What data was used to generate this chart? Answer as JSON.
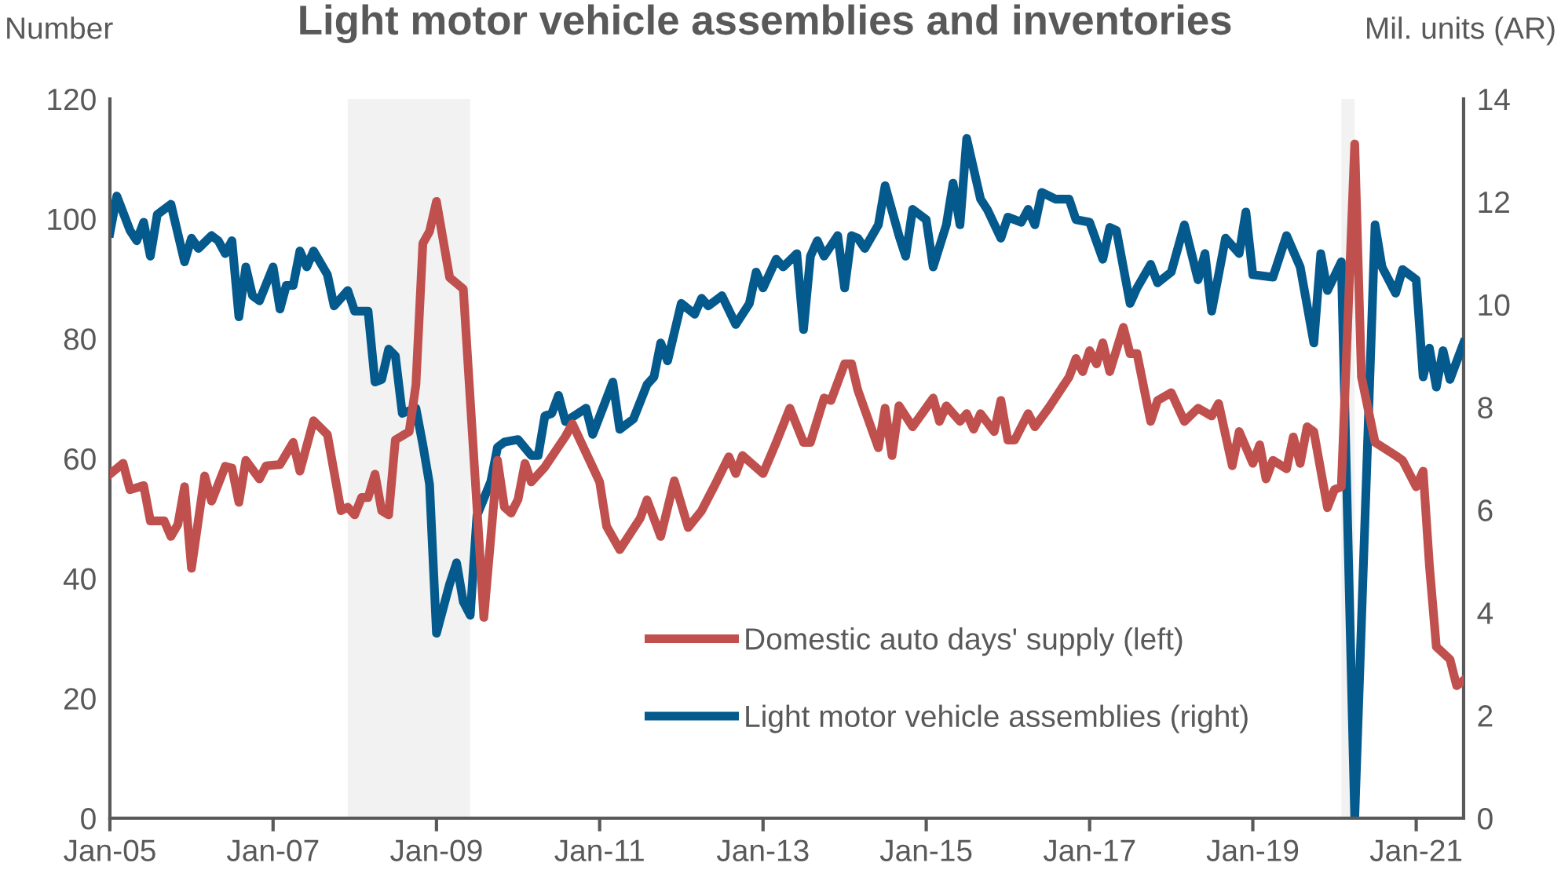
{
  "chart_data": {
    "type": "line",
    "title": "Light motor vehicle assemblies and inventories",
    "ylabel": "Number",
    "y2label": "Mil. units (AR)",
    "xlim": [
      "2005-01",
      "2021-08"
    ],
    "xticks": [
      {
        "value": "2005-01",
        "label": "Jan-05"
      },
      {
        "value": "2007-01",
        "label": "Jan-07"
      },
      {
        "value": "2009-01",
        "label": "Jan-09"
      },
      {
        "value": "2011-01",
        "label": "Jan-11"
      },
      {
        "value": "2013-01",
        "label": "Jan-13"
      },
      {
        "value": "2015-01",
        "label": "Jan-15"
      },
      {
        "value": "2017-01",
        "label": "Jan-17"
      },
      {
        "value": "2019-01",
        "label": "Jan-19"
      },
      {
        "value": "2021-01",
        "label": "Jan-21"
      }
    ],
    "ylim": [
      0,
      120
    ],
    "yticks": [
      0,
      20,
      40,
      60,
      80,
      100,
      120
    ],
    "y2lim": [
      0,
      14
    ],
    "y2ticks": [
      0,
      2,
      4,
      6,
      8,
      10,
      12,
      14
    ],
    "grid": false,
    "legend": "bottom",
    "line_style": "solid",
    "marker": "none",
    "bands": [
      {
        "axis": "x",
        "from": "2007-12",
        "to": "2009-06",
        "color": "#f2f2f2"
      },
      {
        "axis": "x",
        "from": "2020-02",
        "to": "2020-04",
        "color": "#f2f2f2"
      }
    ],
    "series": [
      {
        "name": "Domestic auto days' supply (left)",
        "color": "#c0504d",
        "axis": "y",
        "x": [
          "2005-01",
          "2005-03",
          "2005-04",
          "2005-06",
          "2005-07",
          "2005-09",
          "2005-10",
          "2005-11",
          "2005-12",
          "2006-01",
          "2006-03",
          "2006-04",
          "2006-06",
          "2006-07",
          "2006-08",
          "2006-09",
          "2006-11",
          "2006-12",
          "2007-02",
          "2007-04",
          "2007-05",
          "2007-07",
          "2007-09",
          "2007-11",
          "2007-12",
          "2008-01",
          "2008-02",
          "2008-03",
          "2008-04",
          "2008-05",
          "2008-06",
          "2008-07",
          "2008-09",
          "2008-10",
          "2008-11",
          "2008-12",
          "2009-01",
          "2009-03",
          "2009-05",
          "2009-08",
          "2009-10",
          "2009-11",
          "2009-12",
          "2010-01",
          "2010-02",
          "2010-03",
          "2010-05",
          "2010-08",
          "2010-09",
          "2011-01",
          "2011-02",
          "2011-04",
          "2011-07",
          "2011-08",
          "2011-10",
          "2011-12",
          "2012-02",
          "2012-04",
          "2012-06",
          "2012-08",
          "2012-09",
          "2012-10",
          "2013-01",
          "2013-03",
          "2013-05",
          "2013-07",
          "2013-08",
          "2013-10",
          "2013-11",
          "2014-01",
          "2014-02",
          "2014-03",
          "2014-06",
          "2014-07",
          "2014-08",
          "2014-09",
          "2014-11",
          "2015-02",
          "2015-03",
          "2015-04",
          "2015-06",
          "2015-07",
          "2015-08",
          "2015-09",
          "2015-11",
          "2015-12",
          "2016-01",
          "2016-02",
          "2016-04",
          "2016-05",
          "2016-07",
          "2016-09",
          "2016-10",
          "2016-11",
          "2016-12",
          "2017-01",
          "2017-02",
          "2017-03",
          "2017-04",
          "2017-06",
          "2017-07",
          "2017-08",
          "2017-10",
          "2017-11",
          "2018-01",
          "2018-03",
          "2018-05",
          "2018-07",
          "2018-08",
          "2018-10",
          "2018-11",
          "2019-01",
          "2019-02",
          "2019-03",
          "2019-04",
          "2019-06",
          "2019-07",
          "2019-08",
          "2019-09",
          "2019-10",
          "2019-12",
          "2020-01",
          "2020-02",
          "2020-04",
          "2020-05",
          "2020-07",
          "2020-10",
          "2020-11",
          "2021-01",
          "2021-02",
          "2021-03",
          "2021-04",
          "2021-06",
          "2021-07",
          "2021-08"
        ],
        "values": [
          57.4,
          59.2,
          54.8,
          55.5,
          49.6,
          49.6,
          47.0,
          49.0,
          55.3,
          41.7,
          57.1,
          52.9,
          58.7,
          58.4,
          52.7,
          59.7,
          56.6,
          58.8,
          59.0,
          62.7,
          57.9,
          66.3,
          64.0,
          51.3,
          51.9,
          50.6,
          53.5,
          53.5,
          57.4,
          51.3,
          50.6,
          63.1,
          64.5,
          72.3,
          95.9,
          97.9,
          102.9,
          90.2,
          88.3,
          33.5,
          59.7,
          51.9,
          50.9,
          53.2,
          59.2,
          56.1,
          58.6,
          63.7,
          65.8,
          56.1,
          48.7,
          44.8,
          50.0,
          53.1,
          47.0,
          56.3,
          48.5,
          51.3,
          55.7,
          60.3,
          57.5,
          60.5,
          57.5,
          62.7,
          68.4,
          62.7,
          62.7,
          70.1,
          69.7,
          75.8,
          75.8,
          71.4,
          61.8,
          68.4,
          60.5,
          68.8,
          65.3,
          70.1,
          66.2,
          68.8,
          66.2,
          67.5,
          64.9,
          67.5,
          64.5,
          69.7,
          63.1,
          63.1,
          67.5,
          65.3,
          68.4,
          71.9,
          73.6,
          76.7,
          74.5,
          78.0,
          75.8,
          79.3,
          74.5,
          81.9,
          77.5,
          77.5,
          66.2,
          69.7,
          71.0,
          66.2,
          68.4,
          67.1,
          69.2,
          58.8,
          64.5,
          59.2,
          62.3,
          56.6,
          59.7,
          58.3,
          63.6,
          59.2,
          65.3,
          64.5,
          51.8,
          54.8,
          55.3,
          112.5,
          73.6,
          62.7,
          60.5,
          59.7,
          55.3,
          57.9,
          42.2,
          28.6,
          26.5,
          22.1,
          23.0
        ]
      },
      {
        "name": "Light motor vehicle assemblies (right)",
        "color": "#045a8d",
        "axis": "y2",
        "x": [
          "2005-01",
          "2005-02",
          "2005-04",
          "2005-05",
          "2005-06",
          "2005-07",
          "2005-08",
          "2005-10",
          "2005-12",
          "2006-01",
          "2006-02",
          "2006-04",
          "2006-05",
          "2006-06",
          "2006-07",
          "2006-08",
          "2006-09",
          "2006-10",
          "2006-11",
          "2007-01",
          "2007-02",
          "2007-03",
          "2007-04",
          "2007-05",
          "2007-06",
          "2007-07",
          "2007-09",
          "2007-10",
          "2007-12",
          "2008-01",
          "2008-03",
          "2008-04",
          "2008-05",
          "2008-06",
          "2008-07",
          "2008-08",
          "2008-10",
          "2008-11",
          "2008-12",
          "2009-01",
          "2009-03",
          "2009-04",
          "2009-05",
          "2009-06",
          "2009-07",
          "2009-09",
          "2009-10",
          "2009-11",
          "2010-01",
          "2010-03",
          "2010-04",
          "2010-05",
          "2010-06",
          "2010-07",
          "2010-08",
          "2010-11",
          "2010-12",
          "2011-03",
          "2011-04",
          "2011-06",
          "2011-08",
          "2011-09",
          "2011-10",
          "2011-11",
          "2012-01",
          "2012-03",
          "2012-04",
          "2012-05",
          "2012-07",
          "2012-09",
          "2012-11",
          "2012-12",
          "2013-01",
          "2013-03",
          "2013-04",
          "2013-06",
          "2013-07",
          "2013-08",
          "2013-09",
          "2013-10",
          "2013-12",
          "2014-01",
          "2014-02",
          "2014-03",
          "2014-04",
          "2014-06",
          "2014-07",
          "2014-09",
          "2014-10",
          "2014-11",
          "2015-01",
          "2015-02",
          "2015-04",
          "2015-05",
          "2015-06",
          "2015-07",
          "2015-09",
          "2015-10",
          "2015-12",
          "2016-01",
          "2016-03",
          "2016-04",
          "2016-05",
          "2016-06",
          "2016-08",
          "2016-10",
          "2016-11",
          "2017-01",
          "2017-03",
          "2017-04",
          "2017-05",
          "2017-07",
          "2017-08",
          "2017-10",
          "2017-11",
          "2018-01",
          "2018-03",
          "2018-05",
          "2018-06",
          "2018-07",
          "2018-09",
          "2018-11",
          "2018-12",
          "2019-01",
          "2019-04",
          "2019-06",
          "2019-08",
          "2019-10",
          "2019-11",
          "2019-12",
          "2020-02",
          "2020-04",
          "2020-07",
          "2020-08",
          "2020-10",
          "2020-11",
          "2021-01",
          "2021-02",
          "2021-03",
          "2021-04",
          "2021-05",
          "2021-06",
          "2021-08"
        ],
        "values": [
          11.39,
          12.11,
          11.44,
          11.24,
          11.6,
          10.94,
          11.75,
          11.95,
          10.83,
          11.29,
          11.09,
          11.34,
          11.24,
          10.99,
          11.24,
          9.76,
          10.73,
          10.17,
          10.07,
          10.73,
          9.91,
          10.37,
          10.37,
          11.04,
          10.73,
          11.04,
          10.58,
          9.97,
          10.27,
          9.87,
          9.87,
          8.49,
          8.54,
          9.13,
          9.0,
          7.88,
          7.98,
          7.27,
          6.5,
          3.6,
          4.56,
          4.97,
          4.21,
          3.95,
          5.89,
          6.55,
          7.22,
          7.32,
          7.37,
          7.06,
          7.06,
          7.83,
          7.88,
          8.23,
          7.72,
          7.98,
          7.47,
          8.49,
          7.57,
          7.77,
          8.44,
          8.59,
          9.25,
          8.9,
          10.02,
          9.81,
          10.12,
          9.97,
          10.17,
          9.61,
          10.02,
          10.63,
          10.32,
          10.88,
          10.73,
          10.99,
          9.51,
          10.94,
          11.24,
          10.94,
          11.34,
          10.32,
          11.34,
          11.29,
          11.09,
          11.55,
          12.31,
          11.34,
          10.94,
          11.85,
          11.65,
          10.73,
          11.55,
          12.36,
          11.55,
          13.23,
          12.05,
          11.85,
          11.29,
          11.7,
          11.6,
          11.85,
          11.55,
          12.18,
          12.05,
          12.05,
          11.65,
          11.6,
          10.88,
          11.5,
          11.44,
          10.02,
          10.32,
          10.78,
          10.42,
          10.63,
          11.55,
          10.48,
          10.99,
          9.87,
          11.29,
          10.99,
          11.8,
          10.58,
          10.53,
          11.34,
          10.73,
          9.25,
          10.99,
          10.27,
          10.83,
          0.0,
          11.55,
          10.73,
          10.22,
          10.68,
          10.48,
          8.59,
          9.15,
          8.39,
          9.1,
          8.54,
          9.25
        ]
      }
    ]
  }
}
